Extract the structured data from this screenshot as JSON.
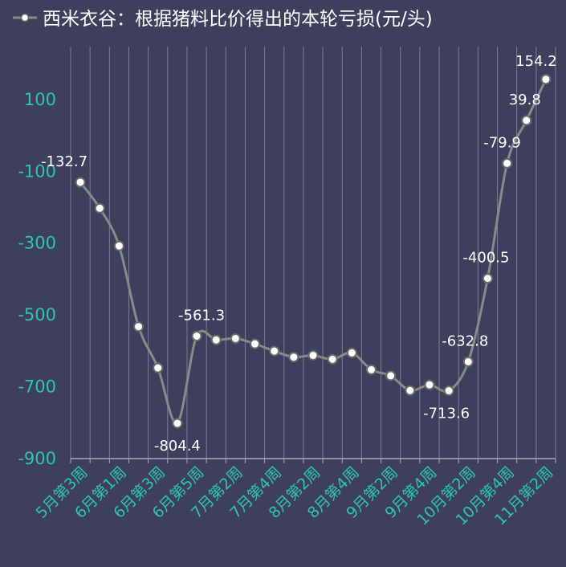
{
  "chart_data": {
    "type": "line",
    "title": "西米衣谷：根据猪料比价得出的本轮亏损(元/头)",
    "ylim": [
      -900,
      200
    ],
    "yticks": [
      100,
      -100,
      -300,
      -500,
      -700,
      -900
    ],
    "x_tick_labels": [
      "5月第3周",
      "6月第1周",
      "6月第3周",
      "6月第5周",
      "7月第2周",
      "7月第4周",
      "8月第2周",
      "8月第4周",
      "9月第2周",
      "9月第4周",
      "10月第2周",
      "10月第4周",
      "11月第2周"
    ],
    "grid": "vertical",
    "legend": "top-left",
    "series": [
      {
        "name": "西米衣谷：根据猪料比价得出的本轮亏损(元/头)",
        "values": [
          -132.7,
          -205,
          -310,
          -535,
          -650,
          -804.4,
          -561.3,
          -572,
          -568,
          -583,
          -603,
          -620,
          -615,
          -626,
          -608,
          -655,
          -672,
          -713,
          -697,
          -713.6,
          -632.8,
          -400.5,
          -79.9,
          39.8,
          154.2
        ],
        "labels": [
          "-132.7",
          "",
          "",
          "",
          "",
          "-804.4",
          "-561.3",
          "",
          "",
          "",
          "",
          "",
          "",
          "",
          "",
          "",
          "",
          "",
          "",
          "-713.6",
          "-632.8",
          "-400.5",
          "-79.9",
          "39.8",
          "154.2"
        ]
      }
    ],
    "colors": {
      "background": "#3d3f5c",
      "line": "#8a8a8a",
      "marker_fill": "#ffffff",
      "marker_stroke": "#6a6a6a",
      "axis_text": "#2ec4b6",
      "label_text": "#ffffff",
      "grid": "#a8a8c0"
    }
  }
}
